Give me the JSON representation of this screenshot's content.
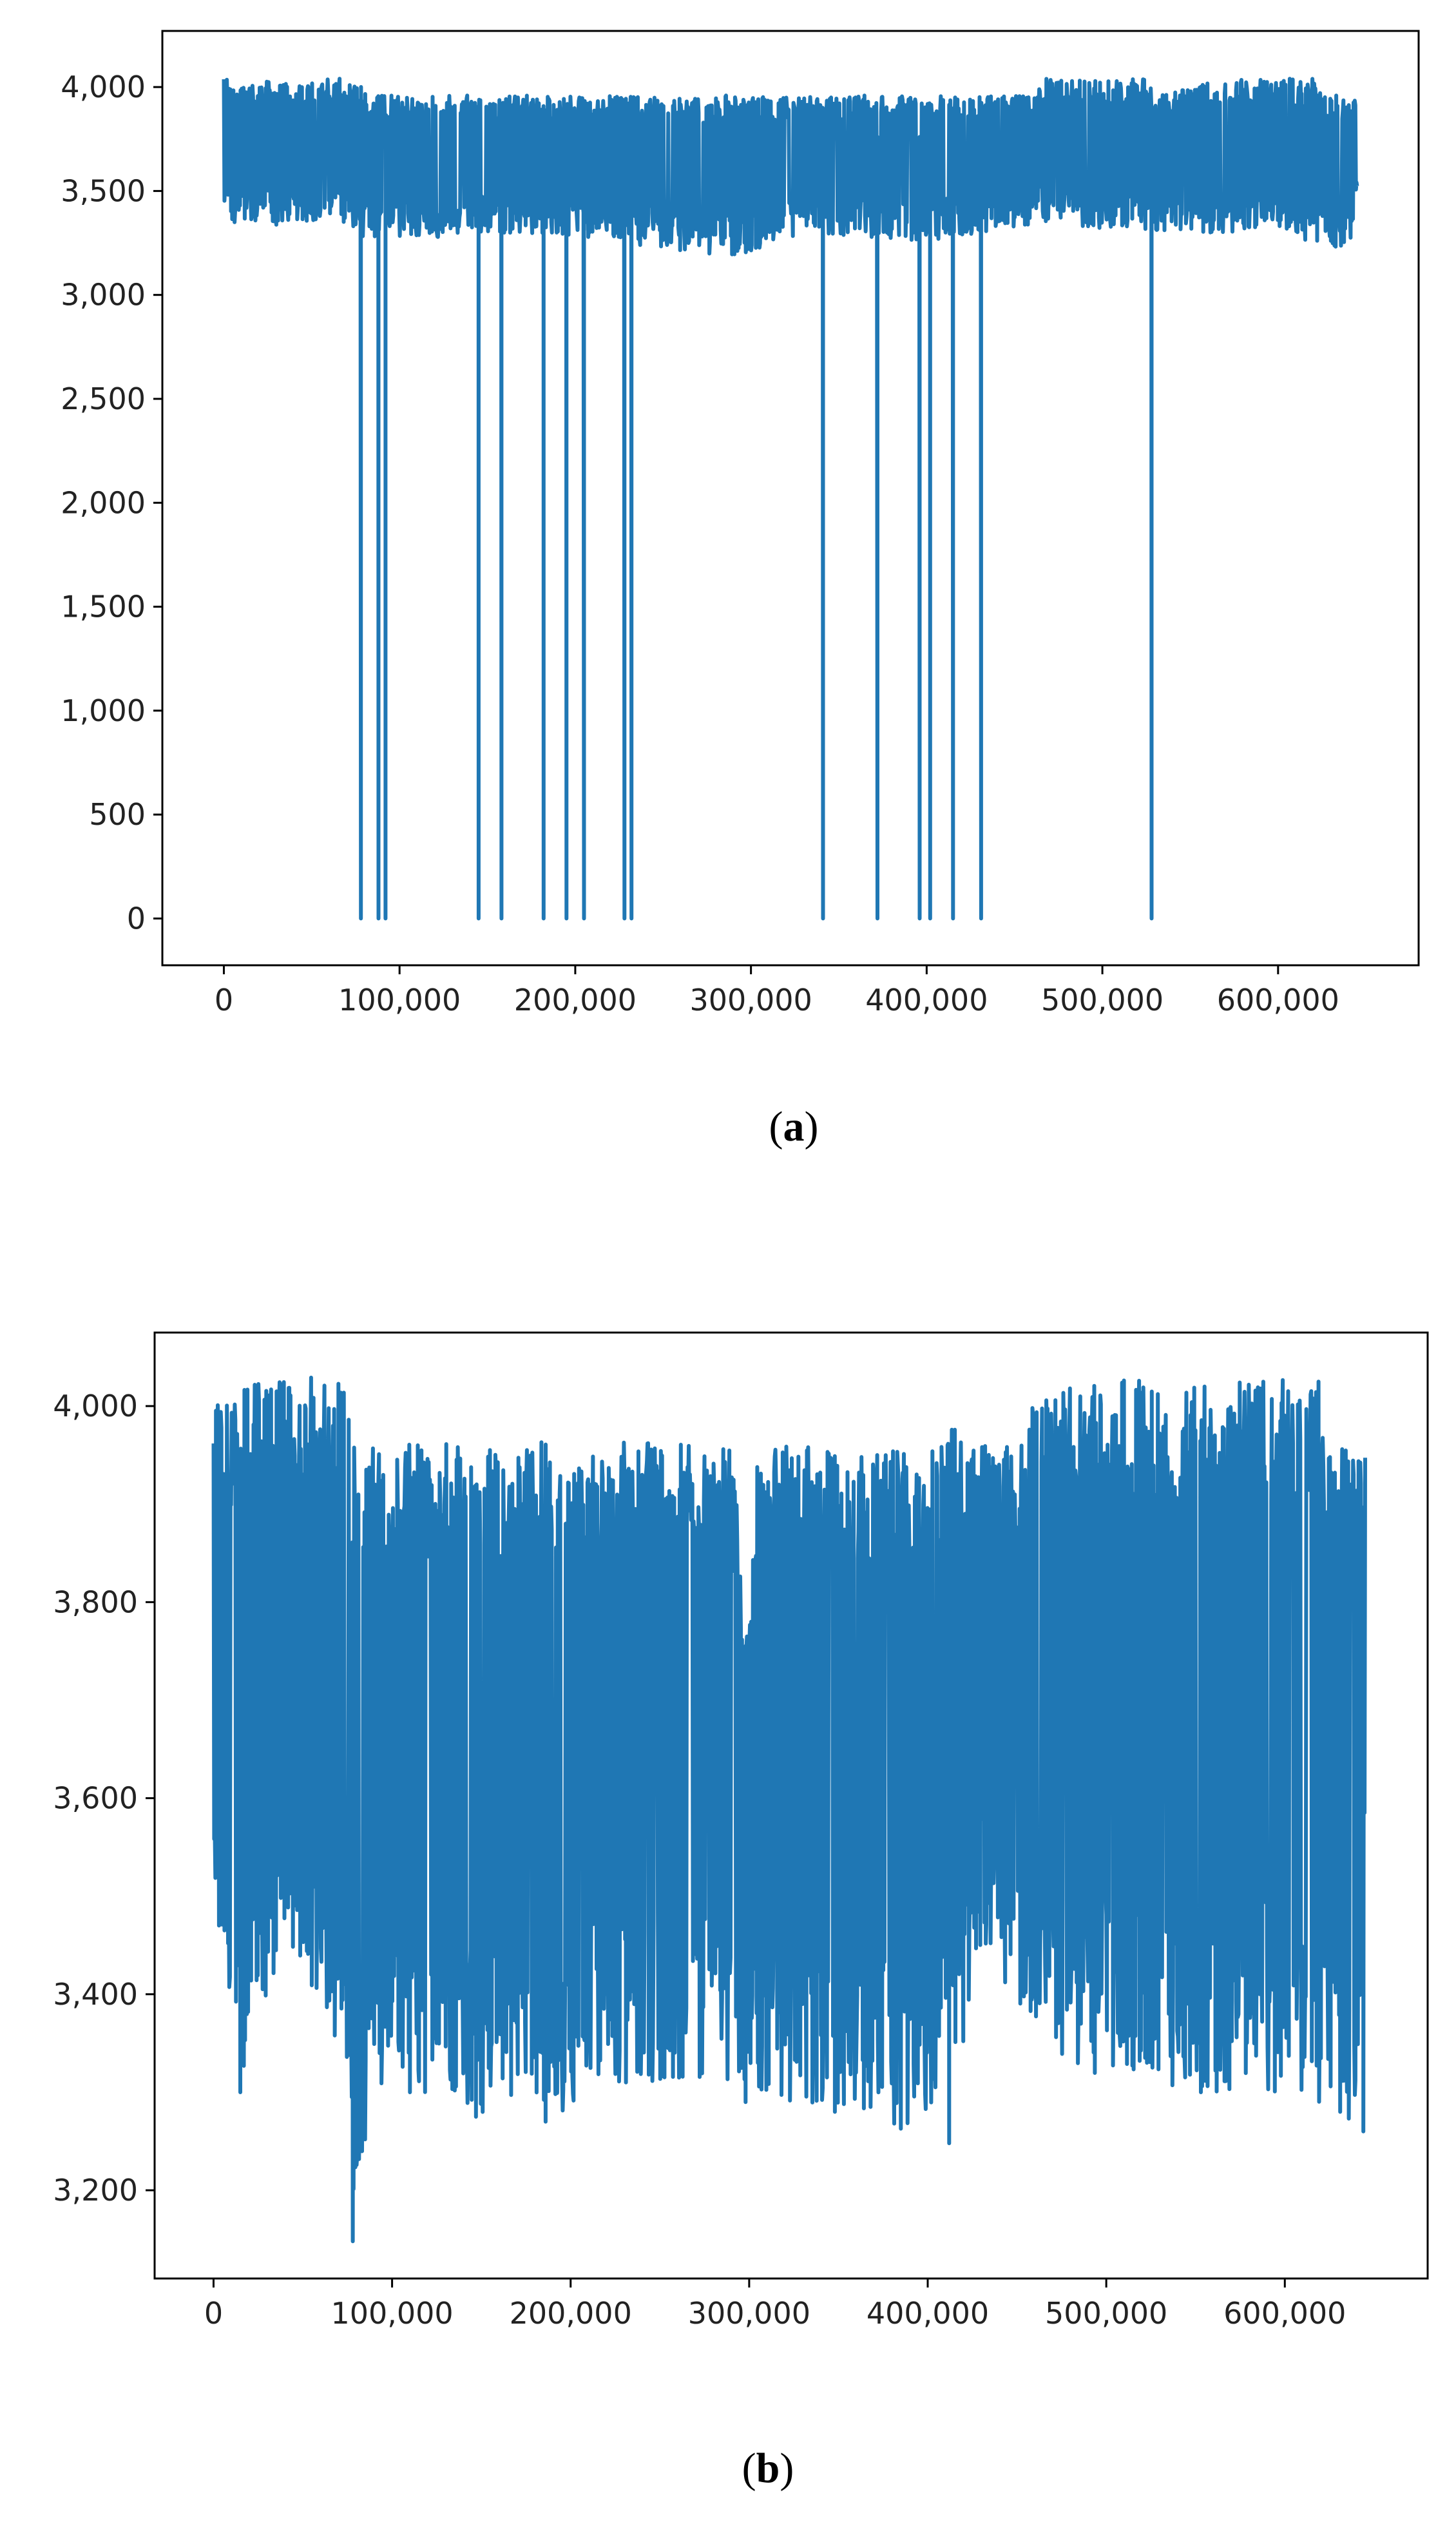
{
  "captions": {
    "a": {
      "open": "(",
      "letter": "a",
      "close": ")"
    },
    "b": {
      "open": "(",
      "letter": "b",
      "close": ")"
    }
  },
  "chart_data": [
    {
      "panel": "a",
      "type": "line",
      "title": "",
      "xlabel": "",
      "ylabel": "",
      "xlim": [
        -35000,
        680000
      ],
      "ylim": [
        -225,
        4270
      ],
      "x_ticks": [
        0,
        100000,
        200000,
        300000,
        400000,
        500000,
        600000
      ],
      "x_tick_labels": [
        "0",
        "100,000",
        "200,000",
        "300,000",
        "400,000",
        "500,000",
        "600,000"
      ],
      "y_ticks": [
        0,
        500,
        1000,
        1500,
        2000,
        2500,
        3000,
        3500,
        4000
      ],
      "y_tick_labels": [
        "0",
        "500",
        "1,000",
        "1,500",
        "2,000",
        "2,500",
        "3,000",
        "3,500",
        "4,000"
      ],
      "grid": false,
      "legend": "none",
      "color": "#1f77b4",
      "x_range": [
        0,
        645000
      ],
      "band_ceiling": [
        [
          0,
          4040
        ],
        [
          75000,
          4040
        ],
        [
          82000,
          3960
        ],
        [
          460000,
          3960
        ],
        [
          465000,
          4040
        ],
        [
          525000,
          4040
        ],
        [
          530000,
          3960
        ],
        [
          565000,
          4040
        ],
        [
          620000,
          4040
        ],
        [
          625000,
          3960
        ],
        [
          645000,
          3960
        ]
      ],
      "band_floor": [
        [
          0,
          3350
        ],
        [
          60000,
          3320
        ],
        [
          90000,
          3250
        ],
        [
          110000,
          3270
        ],
        [
          150000,
          3300
        ],
        [
          200000,
          3280
        ],
        [
          290000,
          3180
        ],
        [
          330000,
          3300
        ],
        [
          400000,
          3260
        ],
        [
          460000,
          3340
        ],
        [
          540000,
          3300
        ],
        [
          600000,
          3300
        ],
        [
          640000,
          3200
        ],
        [
          645000,
          3400
        ]
      ],
      "drops_to_zero_at": [
        78000,
        88000,
        92000,
        145000,
        158000,
        182000,
        195000,
        205000,
        228000,
        232000,
        341000,
        372000,
        396000,
        402000,
        415000,
        431000,
        528000
      ]
    },
    {
      "panel": "b",
      "type": "line",
      "title": "",
      "xlabel": "",
      "ylabel": "",
      "xlim": [
        -33000,
        680000
      ],
      "ylim": [
        3110,
        4075
      ],
      "x_ticks": [
        0,
        100000,
        200000,
        300000,
        400000,
        500000,
        600000
      ],
      "x_tick_labels": [
        "0",
        "100,000",
        "200,000",
        "300,000",
        "400,000",
        "500,000",
        "600,000"
      ],
      "y_ticks": [
        3200,
        3400,
        3600,
        3800,
        4000
      ],
      "y_tick_labels": [
        "3,200",
        "3,400",
        "3,600",
        "3,800",
        "4,000"
      ],
      "grid": false,
      "legend": "none",
      "color": "#1f77b4",
      "x_range": [
        0,
        645000
      ],
      "band_ceiling": [
        [
          0,
          4015
        ],
        [
          10000,
          4000
        ],
        [
          15000,
          4030
        ],
        [
          75000,
          4030
        ],
        [
          80000,
          3960
        ],
        [
          185000,
          3965
        ],
        [
          290000,
          3960
        ],
        [
          300000,
          3760
        ],
        [
          305000,
          3960
        ],
        [
          410000,
          3960
        ],
        [
          415000,
          3990
        ],
        [
          420000,
          3960
        ],
        [
          455000,
          3960
        ],
        [
          460000,
          4020
        ],
        [
          530000,
          4030
        ],
        [
          540000,
          3920
        ],
        [
          545000,
          4020
        ],
        [
          565000,
          4030
        ],
        [
          620000,
          4030
        ],
        [
          625000,
          3960
        ],
        [
          645000,
          3960
        ]
      ],
      "band_floor": [
        [
          0,
          3460
        ],
        [
          15000,
          3300
        ],
        [
          40000,
          3450
        ],
        [
          75000,
          3320
        ],
        [
          78000,
          3150
        ],
        [
          90000,
          3300
        ],
        [
          110000,
          3300
        ],
        [
          150000,
          3280
        ],
        [
          185000,
          3270
        ],
        [
          230000,
          3310
        ],
        [
          290000,
          3300
        ],
        [
          350000,
          3280
        ],
        [
          410000,
          3250
        ],
        [
          430000,
          3450
        ],
        [
          470000,
          3320
        ],
        [
          555000,
          3300
        ],
        [
          620000,
          3290
        ],
        [
          640000,
          3260
        ],
        [
          645000,
          3540
        ]
      ],
      "spikes_down": [
        [
          15000,
          3300
        ],
        [
          78000,
          3148
        ],
        [
          83000,
          3245
        ],
        [
          110000,
          3300
        ],
        [
          147000,
          3275
        ],
        [
          186000,
          3270
        ],
        [
          231000,
          3310
        ],
        [
          298000,
          3290
        ],
        [
          348000,
          3280
        ],
        [
          368000,
          3285
        ],
        [
          412000,
          3248
        ],
        [
          553000,
          3300
        ],
        [
          631000,
          3280
        ],
        [
          644000,
          3260
        ]
      ]
    }
  ]
}
